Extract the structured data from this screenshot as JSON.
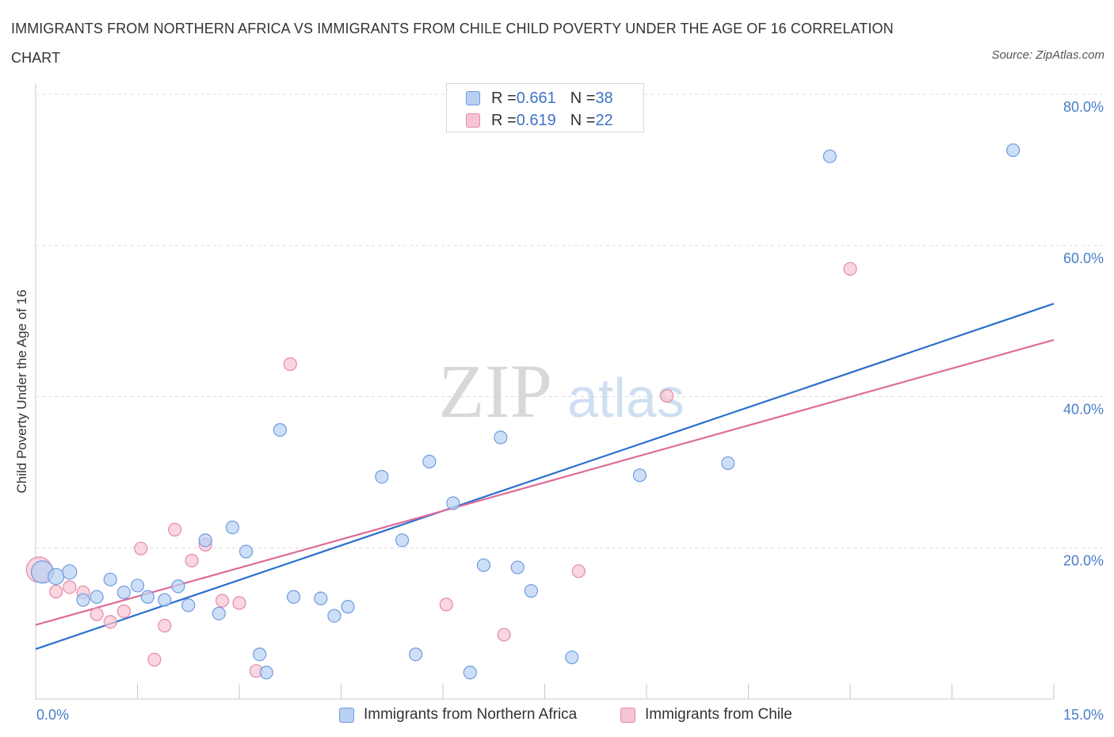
{
  "title": "IMMIGRANTS FROM NORTHERN AFRICA VS IMMIGRANTS FROM CHILE CHILD POVERTY UNDER THE AGE OF 16 CORRELATION CHART",
  "source": "Source: ZipAtlas.com",
  "watermark": {
    "zip": "ZIP",
    "atlas": "atlas"
  },
  "legend": {
    "series1": {
      "r_label": "R = ",
      "r_value": "0.661",
      "n_label": "N = ",
      "n_value": "38"
    },
    "series2": {
      "r_label": "R = ",
      "r_value": "0.619",
      "n_label": "N = ",
      "n_value": "22"
    }
  },
  "colors": {
    "blue_fill": "#b8d1f3",
    "blue_stroke": "#6f9be0",
    "blue_line": "#2b6fcd",
    "pink_fill": "#f6c4d3",
    "pink_stroke": "#e48aa8",
    "pink_line": "#de6c97",
    "grid": "#dcdcdc",
    "axis": "#c9c9c9"
  },
  "chart_data": {
    "type": "scatter",
    "title": "IMMIGRANTS FROM NORTHERN AFRICA VS IMMIGRANTS FROM CHILE CHILD POVERTY UNDER THE AGE OF 16 CORRELATION CHART",
    "xlabel": "",
    "ylabel": "Child Poverty Under the Age of 16",
    "xlim": [
      0,
      15
    ],
    "ylim": [
      0,
      80
    ],
    "x_tick_labels": [
      "0.0%",
      "15.0%"
    ],
    "y_ticks": [
      20,
      40,
      60,
      80
    ],
    "y_tick_labels": [
      "20.0%",
      "40.0%",
      "60.0%",
      "80.0%"
    ],
    "series": [
      {
        "name": "Immigrants from Northern Africa",
        "color": "blue",
        "points": [
          [
            0.1,
            16.8,
            14
          ],
          [
            0.3,
            16.2,
            10
          ],
          [
            0.5,
            16.8,
            9
          ],
          [
            0.7,
            13.1,
            8
          ],
          [
            0.9,
            13.5,
            8
          ],
          [
            1.1,
            15.8,
            8
          ],
          [
            1.3,
            14.1,
            8
          ],
          [
            1.5,
            15.0,
            8
          ],
          [
            1.65,
            13.5,
            8
          ],
          [
            1.9,
            13.1,
            8
          ],
          [
            2.1,
            14.9,
            8
          ],
          [
            2.25,
            12.4,
            8
          ],
          [
            2.5,
            21.0,
            8
          ],
          [
            2.7,
            11.3,
            8
          ],
          [
            2.9,
            22.7,
            8
          ],
          [
            3.1,
            19.5,
            8
          ],
          [
            3.3,
            5.9,
            8
          ],
          [
            3.4,
            3.5,
            8
          ],
          [
            3.6,
            35.6,
            8
          ],
          [
            3.8,
            13.5,
            8
          ],
          [
            4.2,
            13.3,
            8
          ],
          [
            4.4,
            11.0,
            8
          ],
          [
            4.6,
            12.2,
            8
          ],
          [
            5.1,
            29.4,
            8
          ],
          [
            5.4,
            21.0,
            8
          ],
          [
            5.6,
            5.9,
            8
          ],
          [
            5.8,
            31.4,
            8
          ],
          [
            6.15,
            25.9,
            8
          ],
          [
            6.4,
            3.5,
            8
          ],
          [
            6.6,
            17.7,
            8
          ],
          [
            6.85,
            34.6,
            8
          ],
          [
            7.1,
            17.4,
            8
          ],
          [
            7.3,
            14.3,
            8
          ],
          [
            7.9,
            5.5,
            8
          ],
          [
            8.9,
            29.6,
            8
          ],
          [
            10.2,
            31.2,
            8
          ],
          [
            11.7,
            71.8,
            8
          ],
          [
            14.4,
            72.6,
            8
          ]
        ],
        "trend": {
          "x": [
            0,
            15
          ],
          "y": [
            6.6,
            52.3
          ]
        }
      },
      {
        "name": "Immigrants from Chile",
        "color": "pink",
        "points": [
          [
            0.05,
            17.1,
            16
          ],
          [
            0.3,
            14.2,
            8
          ],
          [
            0.5,
            14.8,
            8
          ],
          [
            0.7,
            14.1,
            8
          ],
          [
            0.9,
            11.2,
            8
          ],
          [
            1.1,
            10.2,
            8
          ],
          [
            1.3,
            11.6,
            8
          ],
          [
            1.55,
            19.9,
            8
          ],
          [
            1.75,
            5.2,
            8
          ],
          [
            1.9,
            9.7,
            8
          ],
          [
            2.05,
            22.4,
            8
          ],
          [
            2.3,
            18.3,
            8
          ],
          [
            2.5,
            20.4,
            8
          ],
          [
            2.75,
            13.0,
            8
          ],
          [
            3.0,
            12.7,
            8
          ],
          [
            3.25,
            3.7,
            8
          ],
          [
            3.75,
            44.3,
            8
          ],
          [
            6.05,
            12.5,
            8
          ],
          [
            6.9,
            8.5,
            8
          ],
          [
            8.0,
            16.9,
            8
          ],
          [
            9.3,
            40.1,
            8
          ],
          [
            12.0,
            56.9,
            8
          ]
        ],
        "trend": {
          "x": [
            0,
            15
          ],
          "y": [
            9.8,
            47.5
          ]
        }
      }
    ]
  },
  "bottom_legend": {
    "series1_label": "Immigrants from Northern Africa",
    "series2_label": "Immigrants from Chile"
  }
}
